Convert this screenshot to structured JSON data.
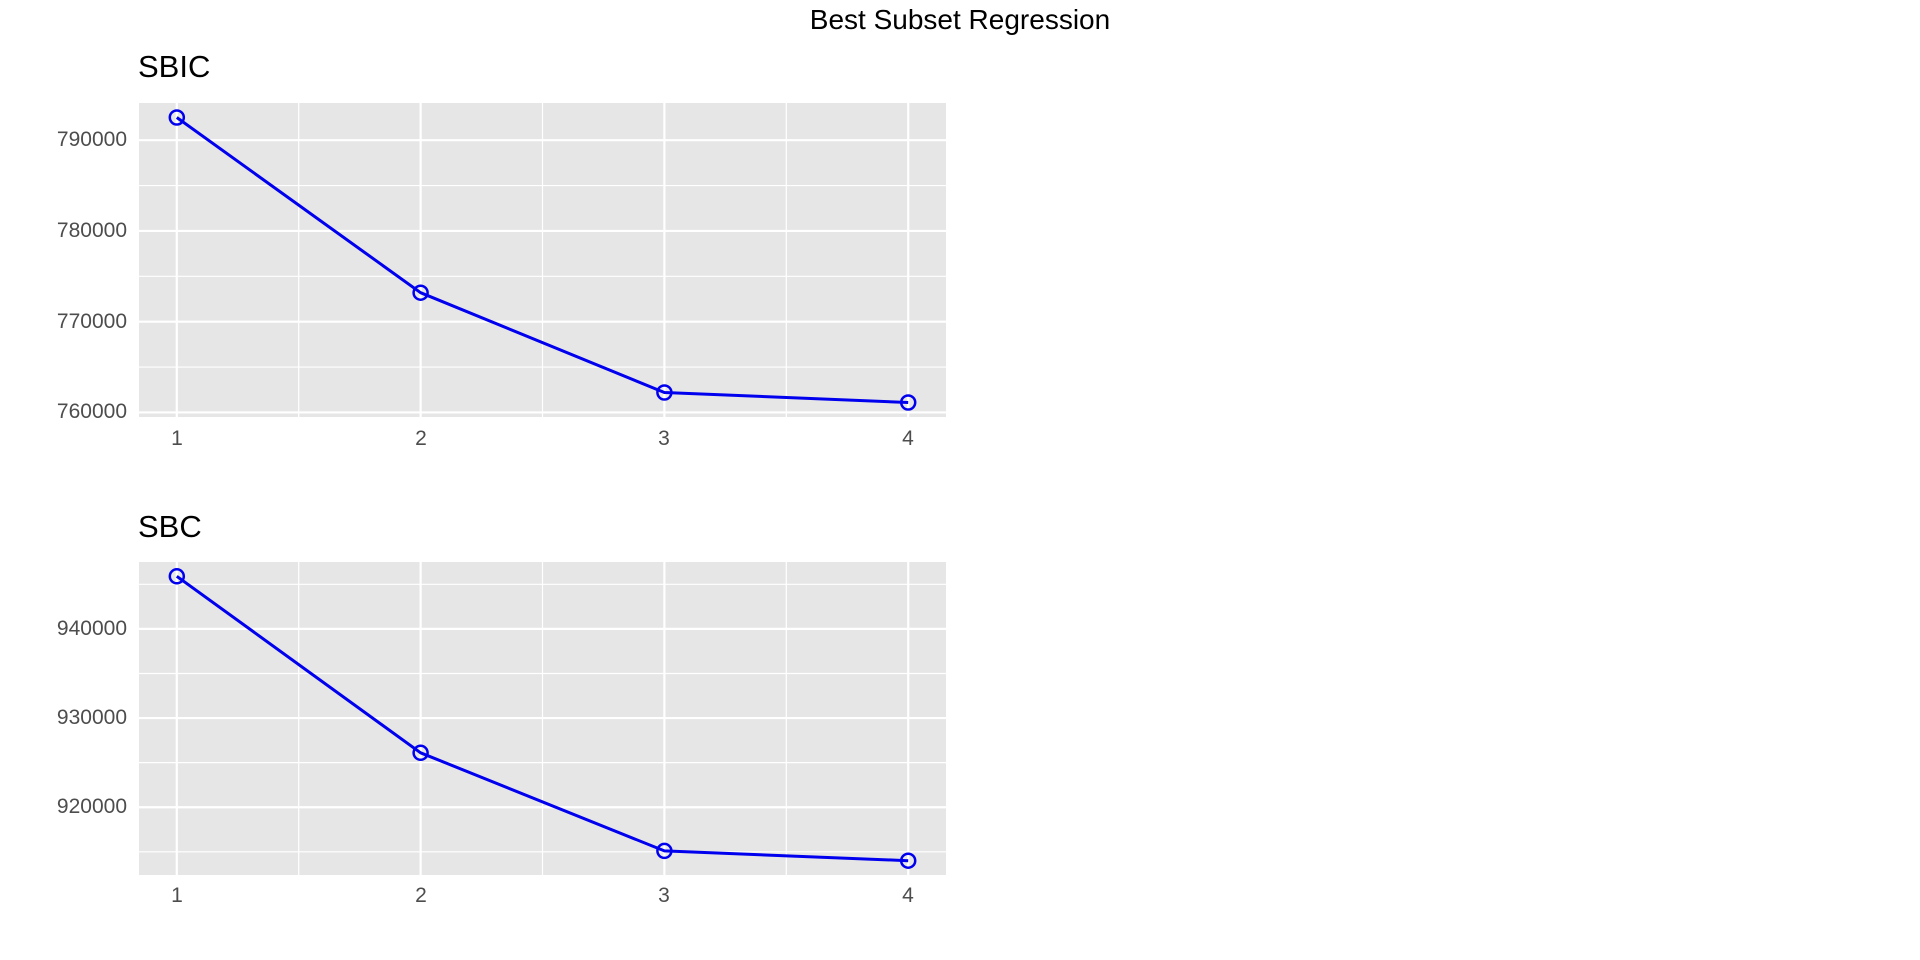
{
  "figure_title": "Best Subset Regression",
  "colors": {
    "line": "#0000ee",
    "panel_bg": "#e6e6e6",
    "grid": "#ffffff",
    "tick_label": "#4d4d4d",
    "title": "#000000"
  },
  "chart_data": [
    {
      "type": "line",
      "title": "SBIC",
      "xlabel": "",
      "ylabel": "",
      "x": [
        1,
        2,
        3,
        4
      ],
      "values": [
        792500,
        773200,
        762200,
        761100
      ],
      "xlim": [
        0.845,
        4.155
      ],
      "ylim": [
        759500,
        794100
      ],
      "x_ticks": [
        1,
        2,
        3,
        4
      ],
      "y_ticks": [
        760000,
        770000,
        780000,
        790000
      ],
      "x_minor_ticks": [
        1.5,
        2.5,
        3.5
      ],
      "y_minor_ticks": [
        765000,
        775000,
        785000
      ],
      "grid": true,
      "legend": false,
      "marker": "open-circle",
      "line_color": "#0000ee",
      "panel_bg": "#e6e6e6"
    },
    {
      "type": "line",
      "title": "SBC",
      "xlabel": "",
      "ylabel": "",
      "x": [
        1,
        2,
        3,
        4
      ],
      "values": [
        945900,
        926100,
        915100,
        914000
      ],
      "xlim": [
        0.845,
        4.155
      ],
      "ylim": [
        912400,
        947500
      ],
      "x_ticks": [
        1,
        2,
        3,
        4
      ],
      "y_ticks": [
        920000,
        930000,
        940000
      ],
      "x_minor_ticks": [
        1.5,
        2.5,
        3.5
      ],
      "y_minor_ticks": [
        915000,
        925000,
        935000,
        945000
      ],
      "grid": true,
      "legend": false,
      "marker": "open-circle",
      "line_color": "#0000ee",
      "panel_bg": "#e6e6e6"
    }
  ]
}
